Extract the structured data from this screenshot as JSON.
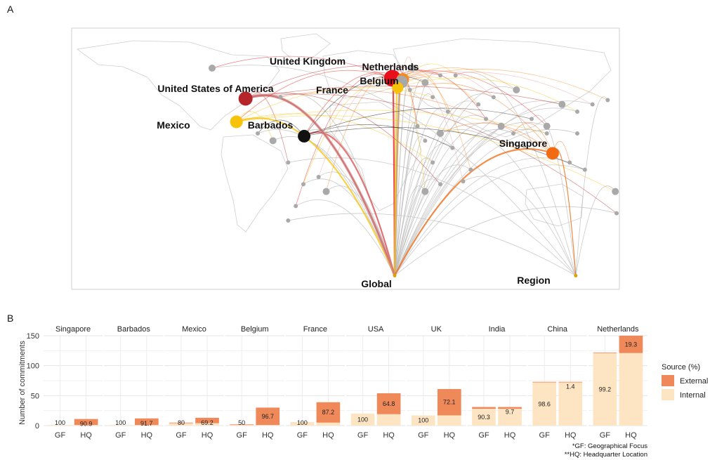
{
  "panel_a": {
    "label": "A",
    "locations": [
      {
        "name": "United Kingdom",
        "lon": -1.5,
        "lat": 53,
        "color": "#e8101a",
        "r": 12,
        "lx": 438,
        "ly": 92
      },
      {
        "name": "Netherlands",
        "lon": 5.3,
        "lat": 52.2,
        "color": "#f58a1f",
        "r": 9,
        "lx": 556,
        "ly": 100
      },
      {
        "name": "Belgium",
        "lon": 4.5,
        "lat": 50.5,
        "color": "#a8a8a8",
        "r": 9,
        "lx": 540,
        "ly": 120
      },
      {
        "name": "France",
        "lon": 2,
        "lat": 46.5,
        "color": "#f6c20a",
        "r": 8,
        "lx": 473,
        "ly": 133
      },
      {
        "name": "United States of America",
        "lon": -98,
        "lat": 39,
        "color": "#b5262a",
        "r": 10,
        "lx": 307,
        "ly": 131
      },
      {
        "name": "Mexico",
        "lon": -104,
        "lat": 23,
        "color": "#f6c20a",
        "r": 9,
        "lx": 247,
        "ly": 183
      },
      {
        "name": "Barbados",
        "lon": -59.5,
        "lat": 13.1,
        "color": "#111111",
        "r": 9,
        "lx": 385,
        "ly": 183
      },
      {
        "name": "Singapore",
        "lon": 103.8,
        "lat": 1.3,
        "color": "#f26a12",
        "r": 9,
        "lx": 745,
        "ly": 209
      },
      {
        "name": "Global",
        "lon": 0,
        "lat": -83,
        "color": "#d8a400",
        "r": 2.5,
        "lx": 536,
        "ly": 409
      },
      {
        "name": "Region",
        "lon": 119,
        "lat": -83,
        "color": "#d8a400",
        "r": 2.5,
        "lx": 760,
        "ly": 404
      }
    ]
  },
  "chart_data": {
    "type": "bar",
    "panel_label": "B",
    "ylabel": "Number of commitments",
    "ylim": [
      0,
      150
    ],
    "yticks": [
      0,
      50,
      100,
      150
    ],
    "categories": [
      "GF",
      "HQ"
    ],
    "legend": {
      "title": "Source (%)",
      "items": [
        {
          "name": "External",
          "color": "#f0895a"
        },
        {
          "name": "Internal",
          "color": "#fde5c3"
        }
      ]
    },
    "notes": [
      "*GF: Geographical Focus",
      "**HQ: Headquarter Location"
    ],
    "facets": [
      {
        "name": "Singapore",
        "GF": {
          "total": 1,
          "internal_pct": 100,
          "label": "100"
        },
        "HQ": {
          "total": 11,
          "external_pct": 90.9,
          "label": "90.9"
        }
      },
      {
        "name": "Barbados",
        "GF": {
          "total": 1,
          "internal_pct": 100,
          "label": "100"
        },
        "HQ": {
          "total": 12,
          "external_pct": 91.7,
          "label": "91.7"
        }
      },
      {
        "name": "Mexico",
        "GF": {
          "total": 5,
          "internal_pct": 80,
          "label": "80"
        },
        "HQ": {
          "total": 13,
          "external_pct": 69.2,
          "label": "69.2"
        }
      },
      {
        "name": "Belgium",
        "GF": {
          "total": 2,
          "internal_pct": 50,
          "label": "50"
        },
        "HQ": {
          "total": 30,
          "external_pct": 96.7,
          "label": "96.7"
        }
      },
      {
        "name": "France",
        "GF": {
          "total": 6,
          "internal_pct": 100,
          "label": "100"
        },
        "HQ": {
          "total": 39,
          "external_pct": 87.2,
          "label": "87.2"
        }
      },
      {
        "name": "USA",
        "GF": {
          "total": 20,
          "internal_pct": 100,
          "label": "100"
        },
        "HQ": {
          "total": 54,
          "external_pct": 64.8,
          "label": "64.8"
        }
      },
      {
        "name": "UK",
        "GF": {
          "total": 17,
          "internal_pct": 100,
          "label": "100"
        },
        "HQ": {
          "total": 61,
          "external_pct": 72.1,
          "label": "72.1"
        }
      },
      {
        "name": "India",
        "GF": {
          "total": 31,
          "internal_pct": 90.3,
          "label": "90.3"
        },
        "HQ": {
          "total": 31,
          "external_pct": 9.7,
          "label": "9.7"
        }
      },
      {
        "name": "China",
        "GF": {
          "total": 73,
          "internal_pct": 98.6,
          "label": "98.6"
        },
        "HQ": {
          "total": 73,
          "external_pct": 1.4,
          "label": "1.4"
        }
      },
      {
        "name": "Netherlands",
        "GF": {
          "total": 122,
          "internal_pct": 99.2,
          "label": "99.2"
        },
        "HQ": {
          "total": 150,
          "external_pct": 19.3,
          "label": "19.3"
        }
      }
    ]
  }
}
